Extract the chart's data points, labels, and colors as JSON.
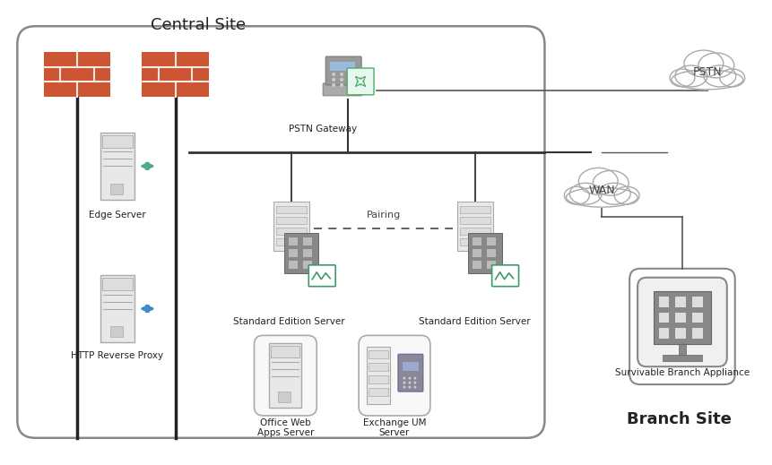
{
  "title_central": "Central Site",
  "title_branch": "Branch Site",
  "bg_color": "#ffffff",
  "labels": {
    "edge_server": "Edge Server",
    "http_proxy": "HTTP Reverse Proxy",
    "pstn_gateway": "PSTN Gateway",
    "std_server1": "Standard Edition Server",
    "std_server2": "Standard Edition Server",
    "office_web": "Office Web\nApps Server",
    "exchange_um": "Exchange UM\nServer",
    "survivable": "Survivable Branch Appliance",
    "pstn": "PSTN",
    "wan": "WAN",
    "pairing": "Pairing"
  },
  "colors": {
    "box_edge": "#888888",
    "line": "#333333",
    "thin_line": "#555555",
    "firewall_fill": "#cc5533",
    "firewall_mortar": "#f0f0f0",
    "server_body": "#e8e8e8",
    "server_edge": "#aaaaaa",
    "building_fill": "#888888",
    "building_win": "#cccccc",
    "chart_fill": "#3a9a6a",
    "chart_bg": "#ffffff",
    "arrow_green": "#4dab8a",
    "arrow_blue": "#4488cc",
    "cloud_edge": "#aaaaaa",
    "cloud_fill": "#ffffff",
    "text_dark": "#222222",
    "text_mid": "#444444",
    "rounded_box_fill": "#f8f8f8",
    "phone_fill": "#888888",
    "phone_screen": "#99bbdd",
    "branch_box_fill": "#f0f0f0"
  }
}
